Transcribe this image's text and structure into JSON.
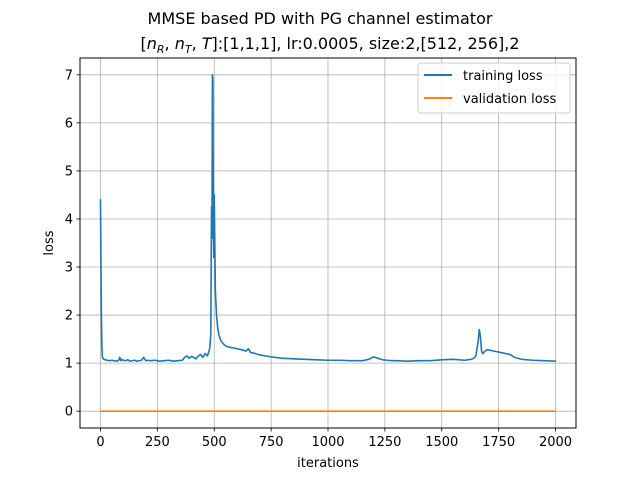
{
  "chart_data": {
    "type": "line",
    "title": "MMSE based PD with PG channel estimator",
    "subtitle_prefix": "[",
    "subtitle_var_n": "n",
    "subtitle_sub_R": "R",
    "subtitle_sep1": ", ",
    "subtitle_sub_T": "T",
    "subtitle_sep2": ", ",
    "subtitle_var_T": "T",
    "subtitle_suffix": "]:[1,1,1], lr:0.0005, size:2,[512, 256],2",
    "xlabel": "iterations",
    "ylabel": "loss",
    "xlim": [
      -90,
      2090
    ],
    "ylim": [
      -0.35,
      7.35
    ],
    "xticks": [
      0,
      250,
      500,
      750,
      1000,
      1250,
      1500,
      1750,
      2000
    ],
    "yticks": [
      0,
      1,
      2,
      3,
      4,
      5,
      6,
      7
    ],
    "grid": true,
    "legend_position": "top-right",
    "series": [
      {
        "name": "training loss",
        "color": "#1f77b4",
        "x": [
          0,
          2,
          4,
          6,
          8,
          10,
          15,
          20,
          30,
          40,
          50,
          60,
          70,
          80,
          85,
          90,
          95,
          100,
          110,
          120,
          130,
          140,
          150,
          160,
          170,
          180,
          190,
          195,
          200,
          210,
          220,
          240,
          260,
          280,
          300,
          320,
          340,
          360,
          370,
          380,
          390,
          400,
          410,
          420,
          430,
          440,
          450,
          460,
          470,
          475,
          480,
          485,
          488,
          490,
          492,
          494,
          496,
          498,
          500,
          505,
          510,
          515,
          520,
          525,
          530,
          540,
          550,
          560,
          580,
          600,
          620,
          640,
          650,
          660,
          680,
          700,
          750,
          800,
          850,
          900,
          950,
          1000,
          1050,
          1100,
          1150,
          1180,
          1200,
          1220,
          1240,
          1260,
          1280,
          1300,
          1350,
          1400,
          1450,
          1500,
          1550,
          1600,
          1630,
          1640,
          1650,
          1660,
          1665,
          1670,
          1675,
          1680,
          1690,
          1700,
          1720,
          1740,
          1760,
          1780,
          1800,
          1820,
          1850,
          1900,
          1950,
          2000
        ],
        "y": [
          4.4,
          3.2,
          2.0,
          1.4,
          1.15,
          1.1,
          1.08,
          1.07,
          1.06,
          1.05,
          1.06,
          1.05,
          1.04,
          1.06,
          1.12,
          1.05,
          1.08,
          1.06,
          1.05,
          1.07,
          1.04,
          1.05,
          1.06,
          1.04,
          1.05,
          1.06,
          1.12,
          1.08,
          1.05,
          1.06,
          1.05,
          1.06,
          1.04,
          1.05,
          1.06,
          1.04,
          1.05,
          1.06,
          1.12,
          1.15,
          1.1,
          1.14,
          1.12,
          1.09,
          1.15,
          1.18,
          1.12,
          1.2,
          1.15,
          1.22,
          1.3,
          1.6,
          4.25,
          3.6,
          7.0,
          6.9,
          3.9,
          3.2,
          4.5,
          2.5,
          2.0,
          1.75,
          1.6,
          1.52,
          1.46,
          1.4,
          1.36,
          1.34,
          1.32,
          1.3,
          1.28,
          1.25,
          1.3,
          1.22,
          1.2,
          1.17,
          1.13,
          1.1,
          1.09,
          1.08,
          1.07,
          1.06,
          1.06,
          1.05,
          1.05,
          1.08,
          1.13,
          1.1,
          1.07,
          1.06,
          1.05,
          1.05,
          1.04,
          1.05,
          1.05,
          1.07,
          1.08,
          1.06,
          1.08,
          1.1,
          1.15,
          1.45,
          1.7,
          1.55,
          1.25,
          1.2,
          1.25,
          1.28,
          1.26,
          1.24,
          1.22,
          1.2,
          1.18,
          1.12,
          1.08,
          1.06,
          1.05,
          1.04
        ]
      },
      {
        "name": "validation loss",
        "color": "#ff7f0e",
        "x": [
          0,
          2000
        ],
        "y": [
          0.0,
          0.0
        ]
      }
    ]
  }
}
